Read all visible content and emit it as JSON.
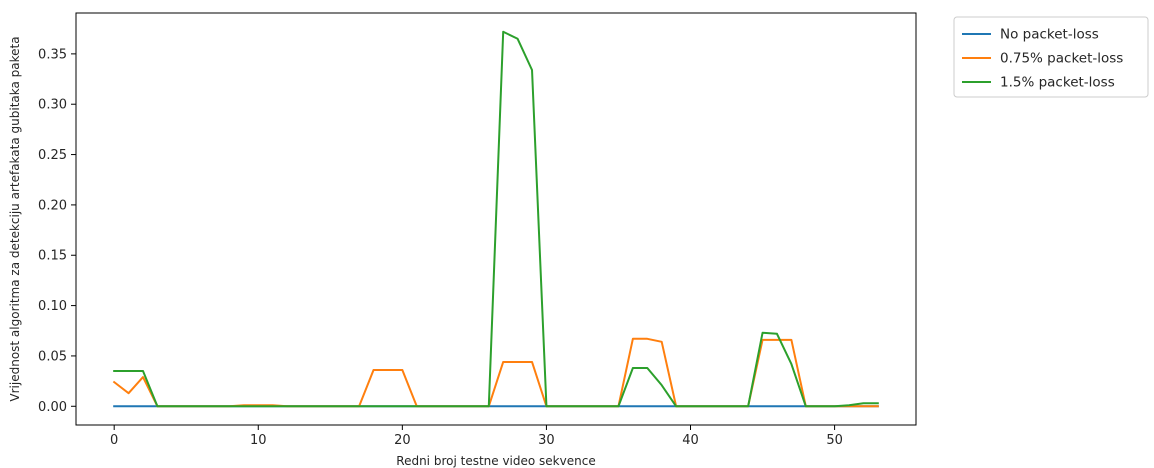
{
  "chart_data": {
    "type": "line",
    "xlabel": "Redni broj testne video sekvence",
    "ylabel": "Vrijednost algoritma za detekciju artefakata gubitaka paketa",
    "xlim": [
      -2.65,
      55.65
    ],
    "ylim": [
      -0.0186,
      0.3906
    ],
    "xticks": [
      0,
      10,
      20,
      30,
      40,
      50
    ],
    "yticks": [
      0.0,
      0.05,
      0.1,
      0.15,
      0.2,
      0.25,
      0.3,
      0.35
    ],
    "ytick_labels": [
      "0.00",
      "0.05",
      "0.10",
      "0.15",
      "0.20",
      "0.25",
      "0.30",
      "0.35"
    ],
    "grid": false,
    "legend_position": "outside-top-right",
    "x": [
      0,
      1,
      2,
      3,
      4,
      5,
      6,
      7,
      8,
      9,
      10,
      11,
      12,
      13,
      14,
      15,
      16,
      17,
      18,
      19,
      20,
      21,
      22,
      23,
      24,
      25,
      26,
      27,
      28,
      29,
      30,
      31,
      32,
      33,
      34,
      35,
      36,
      37,
      38,
      39,
      40,
      41,
      42,
      43,
      44,
      45,
      46,
      47,
      48,
      49,
      50,
      51,
      52,
      53
    ],
    "series": [
      {
        "name": "No packet-loss",
        "color": "#1f77b4",
        "values": [
          0,
          0,
          0,
          0,
          0,
          0,
          0,
          0,
          0,
          0,
          0,
          0,
          0,
          0,
          0,
          0,
          0,
          0,
          0,
          0,
          0,
          0,
          0,
          0,
          0,
          0,
          0,
          0,
          0,
          0,
          0,
          0,
          0,
          0,
          0,
          0,
          0,
          0,
          0,
          0,
          0,
          0,
          0,
          0,
          0,
          0,
          0,
          0,
          0,
          0,
          0,
          0,
          0,
          0
        ]
      },
      {
        "name": "0.75% packet-loss",
        "color": "#ff7f0e",
        "values": [
          0.024,
          0.013,
          0.029,
          0,
          0,
          0,
          0,
          0,
          0,
          0.001,
          0.001,
          0.001,
          0,
          0,
          0,
          0,
          0,
          0,
          0.036,
          0.036,
          0.036,
          0,
          0,
          0,
          0,
          0,
          0,
          0.044,
          0.044,
          0.044,
          0,
          0,
          0,
          0,
          0,
          0,
          0.067,
          0.067,
          0.064,
          0,
          0,
          0,
          0,
          0,
          0,
          0.066,
          0.066,
          0.066,
          0,
          0,
          0,
          0,
          0,
          0
        ]
      },
      {
        "name": "1.5% packet-loss",
        "color": "#2ca02c",
        "values": [
          0.035,
          0.035,
          0.035,
          0,
          0,
          0,
          0,
          0,
          0,
          0,
          0,
          0,
          0,
          0,
          0,
          0,
          0,
          0,
          0,
          0,
          0,
          0,
          0,
          0,
          0,
          0,
          0,
          0.372,
          0.365,
          0.334,
          0,
          0,
          0,
          0,
          0,
          0,
          0.038,
          0.038,
          0.021,
          0,
          0,
          0,
          0,
          0,
          0,
          0.073,
          0.072,
          0.042,
          0,
          0,
          0,
          0.001,
          0.003,
          0.003
        ]
      }
    ]
  }
}
